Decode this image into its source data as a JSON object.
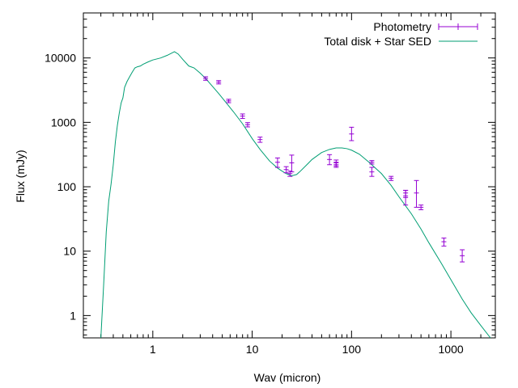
{
  "chart_data": {
    "type": "scatter",
    "title": "",
    "xlabel": "Wav (micron)",
    "ylabel": "Flux (mJy)",
    "xscale": "log",
    "yscale": "log",
    "xlim": [
      0.2,
      2800
    ],
    "ylim": [
      0.45,
      50000
    ],
    "xticks": [
      1,
      10,
      100,
      1000
    ],
    "xtick_labels": [
      "1",
      "10",
      "100",
      "1000"
    ],
    "yticks": [
      1,
      10,
      100,
      1000,
      10000
    ],
    "ytick_labels": [
      "1",
      "10",
      "100",
      "1000",
      "10000"
    ],
    "grid": false,
    "legend_position": "top-right",
    "series": [
      {
        "name": "Photometry",
        "kind": "errorbars",
        "color": "#9400d3",
        "points": [
          {
            "x": 3.4,
            "y": 4800,
            "ylo": 4500,
            "yhi": 5100
          },
          {
            "x": 4.6,
            "y": 4200,
            "ylo": 3950,
            "yhi": 4450
          },
          {
            "x": 5.8,
            "y": 2150,
            "ylo": 2020,
            "yhi": 2280
          },
          {
            "x": 8.0,
            "y": 1250,
            "ylo": 1150,
            "yhi": 1350
          },
          {
            "x": 9.0,
            "y": 920,
            "ylo": 850,
            "yhi": 990
          },
          {
            "x": 12.0,
            "y": 540,
            "ylo": 490,
            "yhi": 590
          },
          {
            "x": 18.0,
            "y": 240,
            "ylo": 200,
            "yhi": 280
          },
          {
            "x": 22.0,
            "y": 185,
            "ylo": 165,
            "yhi": 205
          },
          {
            "x": 24.0,
            "y": 160,
            "ylo": 145,
            "yhi": 175
          },
          {
            "x": 25.0,
            "y": 235,
            "ylo": 170,
            "yhi": 310
          },
          {
            "x": 60.0,
            "y": 265,
            "ylo": 220,
            "yhi": 315
          },
          {
            "x": 70.0,
            "y": 235,
            "ylo": 210,
            "yhi": 260
          },
          {
            "x": 70.0,
            "y": 220,
            "ylo": 200,
            "yhi": 240
          },
          {
            "x": 100.0,
            "y": 660,
            "ylo": 520,
            "yhi": 840
          },
          {
            "x": 160.0,
            "y": 240,
            "ylo": 225,
            "yhi": 255
          },
          {
            "x": 160.0,
            "y": 170,
            "ylo": 145,
            "yhi": 200
          },
          {
            "x": 250.0,
            "y": 135,
            "ylo": 125,
            "yhi": 145
          },
          {
            "x": 350.0,
            "y": 80,
            "ylo": 72,
            "yhi": 88
          },
          {
            "x": 350.0,
            "y": 68,
            "ylo": 52,
            "yhi": 88
          },
          {
            "x": 450.0,
            "y": 80,
            "ylo": 48,
            "yhi": 125
          },
          {
            "x": 500.0,
            "y": 48,
            "ylo": 44,
            "yhi": 52
          },
          {
            "x": 850.0,
            "y": 14,
            "ylo": 12,
            "yhi": 16
          },
          {
            "x": 1300.0,
            "y": 8.5,
            "ylo": 6.8,
            "yhi": 10.5
          }
        ]
      },
      {
        "name": "Total disk + Star SED",
        "kind": "line",
        "color": "#009e73",
        "x": [
          0.3,
          0.32,
          0.34,
          0.36,
          0.38,
          0.4,
          0.42,
          0.44,
          0.46,
          0.48,
          0.5,
          0.52,
          0.55,
          0.58,
          0.62,
          0.66,
          0.7,
          0.75,
          0.8,
          0.9,
          1.0,
          1.2,
          1.4,
          1.65,
          1.8,
          2.0,
          2.3,
          2.6,
          3.0,
          3.4,
          4.0,
          4.6,
          5.5,
          6.5,
          8.0,
          10.0,
          12.0,
          15.0,
          18.0,
          20.0,
          22.0,
          25.0,
          28.0,
          30.0,
          35.0,
          40.0,
          50.0,
          60.0,
          70.0,
          80.0,
          90.0,
          100.0,
          120.0,
          150.0,
          200.0,
          250.0,
          300.0,
          400.0,
          500.0,
          600.0,
          800.0,
          1000.0,
          1300.0,
          1600.0,
          2000.0,
          2500.0
        ],
        "y": [
          0.45,
          3,
          20,
          60,
          110,
          220,
          500,
          900,
          1400,
          2000,
          2400,
          3500,
          4300,
          5000,
          6000,
          7000,
          7300,
          7500,
          8000,
          8700,
          9300,
          10000,
          11000,
          12500,
          11500,
          9500,
          7500,
          7000,
          5800,
          4800,
          3600,
          2800,
          2000,
          1450,
          950,
          560,
          380,
          250,
          195,
          175,
          160,
          148,
          155,
          170,
          215,
          265,
          340,
          380,
          400,
          400,
          390,
          370,
          320,
          240,
          160,
          105,
          70,
          38,
          22,
          13.5,
          6.5,
          3.6,
          1.8,
          1.1,
          0.7,
          0.45
        ]
      }
    ]
  },
  "colors": {
    "photometry": "#9400d3",
    "sed_line": "#009e73",
    "axes": "#000000"
  }
}
